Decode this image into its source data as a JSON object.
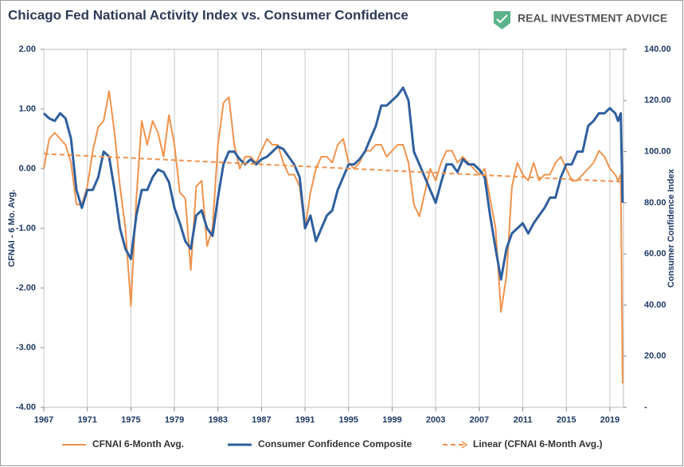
{
  "chart_data": {
    "type": "line",
    "title": "Chicago Fed National Activity Index vs. Consumer Confidence",
    "logo": "REAL INVESTMENT ADVICE",
    "ylabel": "CFNAI - 6 Mo. Avg.",
    "y2label": "Consumer Confidence Index",
    "xlim": [
      1967,
      2020.25
    ],
    "xticks": [
      1967,
      1971,
      1975,
      1979,
      1983,
      1987,
      1991,
      1995,
      1999,
      2003,
      2007,
      2011,
      2015,
      2019
    ],
    "ylim": [
      -4,
      2
    ],
    "yticks": [
      {
        "value": -4,
        "label": "-4.00"
      },
      {
        "value": -3,
        "label": "-3.00"
      },
      {
        "value": -2,
        "label": "-2.00"
      },
      {
        "value": -1,
        "label": "-1.00"
      },
      {
        "value": 0,
        "label": "0.00"
      },
      {
        "value": 1,
        "label": "1.00"
      },
      {
        "value": 2,
        "label": "2.00"
      }
    ],
    "y2lim": [
      0,
      140
    ],
    "y2ticks": [
      {
        "value": 0,
        "label": "-"
      },
      {
        "value": 20,
        "label": "20.00"
      },
      {
        "value": 40,
        "label": "40.00"
      },
      {
        "value": 60,
        "label": "60.00"
      },
      {
        "value": 80,
        "label": "80.00"
      },
      {
        "value": 100,
        "label": "100.00"
      },
      {
        "value": 120,
        "label": "120.00"
      },
      {
        "value": 140,
        "label": "140.00"
      }
    ],
    "grid": "x",
    "legend": "bottom",
    "x": [
      1967,
      1967.5,
      1968,
      1968.5,
      1969,
      1969.5,
      1970,
      1970.5,
      1971,
      1971.5,
      1972,
      1972.5,
      1973,
      1973.5,
      1974,
      1974.5,
      1975,
      1975.5,
      1976,
      1976.5,
      1977,
      1977.5,
      1978,
      1978.5,
      1979,
      1979.5,
      1980,
      1980.5,
      1981,
      1981.5,
      1982,
      1982.5,
      1983,
      1983.5,
      1984,
      1984.5,
      1985,
      1985.5,
      1986,
      1986.5,
      1987,
      1987.5,
      1988,
      1988.5,
      1989,
      1989.5,
      1990,
      1990.5,
      1991,
      1991.5,
      1992,
      1992.5,
      1993,
      1993.5,
      1994,
      1994.5,
      1995,
      1995.5,
      1996,
      1996.5,
      1997,
      1997.5,
      1998,
      1998.5,
      1999,
      1999.5,
      2000,
      2000.5,
      2001,
      2001.5,
      2002,
      2002.5,
      2003,
      2003.5,
      2004,
      2004.5,
      2005,
      2005.5,
      2006,
      2006.5,
      2007,
      2007.5,
      2008,
      2008.5,
      2009,
      2009.5,
      2010,
      2010.5,
      2011,
      2011.5,
      2012,
      2012.5,
      2013,
      2013.5,
      2014,
      2014.5,
      2015,
      2015.5,
      2016,
      2016.5,
      2017,
      2017.5,
      2018,
      2018.5,
      2019,
      2019.5,
      2019.75,
      2020,
      2020.17
    ],
    "series": [
      {
        "name": "CFNAI 6-Month Avg.",
        "color": "#f0924c",
        "width": 2,
        "values": [
          0.0,
          0.5,
          0.6,
          0.5,
          0.4,
          0.1,
          -0.6,
          -0.6,
          -0.3,
          0.3,
          0.7,
          0.8,
          1.3,
          0.6,
          -0.3,
          -1.0,
          -2.3,
          -0.5,
          0.8,
          0.4,
          0.8,
          0.6,
          0.2,
          0.9,
          0.4,
          -0.4,
          -0.5,
          -1.7,
          -0.3,
          -0.2,
          -1.3,
          -1.0,
          0.4,
          1.1,
          1.2,
          0.4,
          0.0,
          0.2,
          0.2,
          0.1,
          0.3,
          0.5,
          0.4,
          0.4,
          0.1,
          -0.1,
          -0.1,
          -0.3,
          -1.0,
          -0.4,
          0.0,
          0.2,
          0.2,
          0.1,
          0.4,
          0.5,
          0.1,
          0.0,
          0.1,
          0.3,
          0.3,
          0.4,
          0.4,
          0.2,
          0.3,
          0.4,
          0.4,
          0.1,
          -0.6,
          -0.8,
          -0.4,
          0.0,
          -0.2,
          0.1,
          0.3,
          0.3,
          0.1,
          0.2,
          0.1,
          0.0,
          -0.1,
          0.0,
          -0.5,
          -1.0,
          -2.4,
          -1.8,
          -0.3,
          0.1,
          -0.1,
          -0.2,
          0.1,
          -0.2,
          -0.1,
          -0.1,
          0.1,
          0.2,
          0.0,
          -0.2,
          -0.2,
          -0.1,
          0.0,
          0.1,
          0.3,
          0.2,
          0.0,
          -0.1,
          -0.2,
          -0.1,
          -3.6
        ]
      },
      {
        "name": "Consumer Confidence Composite",
        "color": "#2f5f9e",
        "width": 3,
        "axis": "y2",
        "values": [
          115,
          113,
          112,
          115,
          113,
          105,
          85,
          78,
          85,
          85,
          90,
          100,
          98,
          85,
          70,
          62,
          58,
          75,
          85,
          85,
          90,
          93,
          92,
          88,
          78,
          72,
          65,
          62,
          75,
          77,
          70,
          67,
          82,
          95,
          100,
          100,
          97,
          95,
          97,
          95,
          97,
          98,
          100,
          102,
          101,
          98,
          95,
          90,
          70,
          75,
          65,
          70,
          75,
          77,
          85,
          90,
          95,
          95,
          97,
          100,
          105,
          110,
          118,
          118,
          120,
          122,
          125,
          120,
          100,
          95,
          90,
          85,
          80,
          88,
          95,
          95,
          92,
          97,
          95,
          95,
          93,
          90,
          75,
          62,
          50,
          62,
          68,
          70,
          72,
          68,
          72,
          75,
          78,
          82,
          82,
          90,
          95,
          95,
          100,
          100,
          110,
          112,
          115,
          115,
          117,
          115,
          112,
          115,
          80
        ]
      },
      {
        "name": "Linear (CFNAI 6-Month Avg.)",
        "color": "#f0924c",
        "width": 2,
        "dash": true,
        "x": [
          1967,
          2020.17
        ],
        "values": [
          0.25,
          -0.22
        ]
      }
    ]
  }
}
